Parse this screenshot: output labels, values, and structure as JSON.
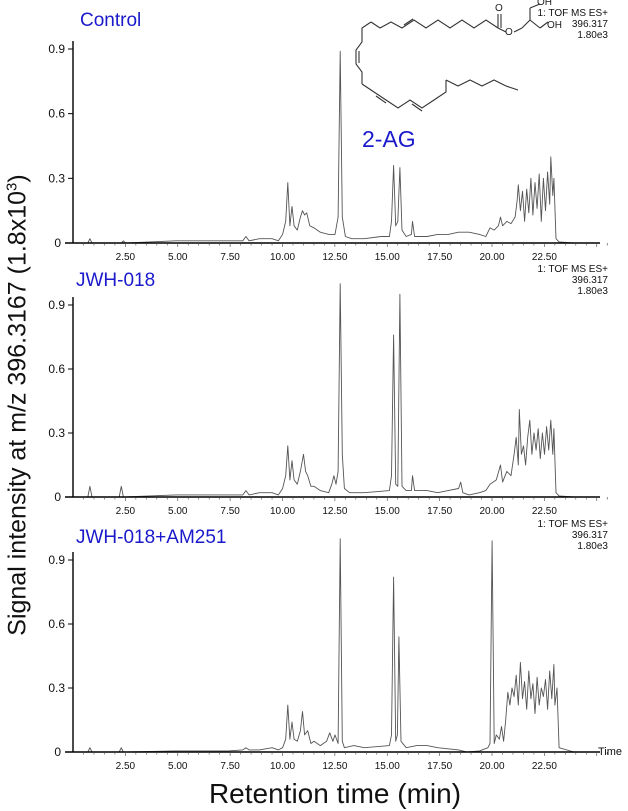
{
  "figure": {
    "ylabel": "Signal intensity at m/z 396.3167 (1.8x10",
    "ylabel_sup": "3",
    "ylabel_close": ")",
    "xlabel": "Retention time (min)",
    "time_axis_label": "Time",
    "compound_label": "2-AG",
    "structure": {
      "oh1": "OH",
      "oh2": "OH",
      "carbonyl_o": "O",
      "ester_o": "O"
    },
    "trace_color": "#555555",
    "title_color": "#1a1acc"
  },
  "panels": [
    {
      "title": "Control",
      "meta_line1": "1: TOF MS ES+",
      "meta_line2": "396.317",
      "meta_line3": "1.80e3"
    },
    {
      "title": "JWH-018",
      "meta_line1": "1: TOF MS ES+",
      "meta_line2": "396.317",
      "meta_line3": "1.80e3"
    },
    {
      "title": "JWH-018+AM251",
      "meta_line1": "1: TOF MS ES+",
      "meta_line2": "396.317",
      "meta_line3": "1.80e3"
    }
  ],
  "chart_data": [
    {
      "type": "line",
      "title": "Control",
      "xlabel": "Retention time (min)",
      "ylabel": "Signal intensity at m/z 396.3167 (1.8x10^3)",
      "xlim": [
        0,
        25.5
      ],
      "ylim": [
        0,
        0.9
      ],
      "xticks": [
        "2.50",
        "5.00",
        "7.50",
        "10.00",
        "12.50",
        "15.00",
        "17.50",
        "20.00",
        "22.50"
      ],
      "yticks": [
        "0",
        "0.3",
        "0.6",
        "0.9"
      ],
      "grid": false,
      "peaks": [
        {
          "x": 0.9,
          "y": 0.02
        },
        {
          "x": 10.35,
          "y": 0.28
        },
        {
          "x": 10.55,
          "y": 0.17
        },
        {
          "x": 11.05,
          "y": 0.15
        },
        {
          "x": 11.2,
          "y": 0.13
        },
        {
          "x": 12.85,
          "y": 0.89
        },
        {
          "x": 15.4,
          "y": 0.36
        },
        {
          "x": 15.7,
          "y": 0.35
        },
        {
          "x": 16.3,
          "y": 0.1
        },
        {
          "x": 20.5,
          "y": 0.1
        },
        {
          "x": 21.35,
          "y": 0.27
        },
        {
          "x": 22.0,
          "y": 0.3
        },
        {
          "x": 22.9,
          "y": 0.4
        }
      ],
      "x": [
        0.2,
        0.8,
        0.9,
        1.0,
        2.4,
        2.5,
        2.6,
        5.0,
        7.5,
        8.2,
        8.35,
        8.5,
        9.0,
        9.6,
        9.9,
        10.1,
        10.25,
        10.35,
        10.45,
        10.55,
        10.65,
        10.8,
        10.95,
        11.05,
        11.15,
        11.25,
        11.4,
        11.6,
        11.9,
        12.3,
        12.6,
        12.75,
        12.85,
        12.95,
        13.1,
        13.4,
        14.0,
        14.8,
        15.2,
        15.3,
        15.4,
        15.5,
        15.6,
        15.7,
        15.8,
        16.0,
        16.25,
        16.3,
        16.4,
        17.0,
        17.5,
        18.0,
        18.5,
        19.0,
        19.5,
        19.8,
        20.0,
        20.2,
        20.4,
        20.5,
        20.6,
        20.8,
        21.0,
        21.2,
        21.3,
        21.35,
        21.45,
        21.55,
        21.65,
        21.75,
        21.85,
        21.95,
        22.05,
        22.15,
        22.25,
        22.35,
        22.45,
        22.55,
        22.65,
        22.75,
        22.85,
        22.9,
        23.0,
        23.05,
        23.15,
        23.3,
        24.0,
        25.0
      ],
      "values": [
        0.0,
        0.0,
        0.02,
        0.0,
        0.0,
        0.01,
        0.0,
        0.01,
        0.01,
        0.01,
        0.03,
        0.01,
        0.02,
        0.02,
        0.01,
        0.04,
        0.1,
        0.28,
        0.08,
        0.17,
        0.08,
        0.06,
        0.12,
        0.15,
        0.13,
        0.14,
        0.08,
        0.07,
        0.05,
        0.04,
        0.04,
        0.12,
        0.89,
        0.12,
        0.03,
        0.02,
        0.02,
        0.03,
        0.03,
        0.1,
        0.36,
        0.08,
        0.1,
        0.35,
        0.06,
        0.03,
        0.04,
        0.1,
        0.03,
        0.03,
        0.04,
        0.04,
        0.05,
        0.05,
        0.04,
        0.03,
        0.07,
        0.06,
        0.08,
        0.12,
        0.08,
        0.1,
        0.09,
        0.12,
        0.2,
        0.27,
        0.15,
        0.24,
        0.1,
        0.25,
        0.14,
        0.3,
        0.13,
        0.28,
        0.16,
        0.32,
        0.1,
        0.3,
        0.15,
        0.33,
        0.18,
        0.4,
        0.22,
        0.3,
        0.02,
        0.005,
        0.0,
        0.0
      ]
    },
    {
      "type": "line",
      "title": "JWH-018",
      "xlabel": "Retention time (min)",
      "ylabel": "Signal intensity at m/z 396.3167 (1.8x10^3)",
      "xlim": [
        0,
        25.5
      ],
      "ylim": [
        0,
        0.9
      ],
      "xticks": [
        "2.50",
        "5.00",
        "7.50",
        "10.00",
        "12.50",
        "15.00",
        "17.50",
        "20.00",
        "22.50"
      ],
      "yticks": [
        "0",
        "0.3",
        "0.6",
        "0.9"
      ],
      "grid": false,
      "peaks": [
        {
          "x": 0.9,
          "y": 0.05
        },
        {
          "x": 2.4,
          "y": 0.05
        },
        {
          "x": 10.35,
          "y": 0.24
        },
        {
          "x": 10.55,
          "y": 0.17
        },
        {
          "x": 11.1,
          "y": 0.2
        },
        {
          "x": 12.55,
          "y": 0.1
        },
        {
          "x": 12.85,
          "y": 1.0
        },
        {
          "x": 15.4,
          "y": 0.76
        },
        {
          "x": 15.7,
          "y": 0.95
        },
        {
          "x": 16.3,
          "y": 0.1
        },
        {
          "x": 18.6,
          "y": 0.07
        },
        {
          "x": 21.4,
          "y": 0.41
        },
        {
          "x": 21.9,
          "y": 0.36
        },
        {
          "x": 22.9,
          "y": 0.36
        }
      ],
      "x": [
        0.2,
        0.8,
        0.9,
        1.0,
        2.3,
        2.4,
        2.5,
        5.0,
        7.5,
        8.2,
        8.35,
        8.5,
        9.0,
        9.6,
        9.9,
        10.1,
        10.25,
        10.35,
        10.45,
        10.55,
        10.65,
        10.8,
        10.95,
        11.1,
        11.2,
        11.3,
        11.45,
        11.6,
        11.9,
        12.3,
        12.45,
        12.55,
        12.65,
        12.75,
        12.85,
        12.95,
        13.05,
        13.3,
        14.0,
        15.2,
        15.3,
        15.4,
        15.5,
        15.6,
        15.7,
        15.8,
        16.0,
        16.25,
        16.3,
        16.4,
        17.0,
        17.5,
        18.0,
        18.5,
        18.6,
        18.7,
        19.0,
        19.5,
        19.8,
        20.0,
        20.3,
        20.5,
        20.6,
        20.8,
        21.0,
        21.15,
        21.25,
        21.35,
        21.4,
        21.5,
        21.6,
        21.7,
        21.8,
        21.9,
        22.0,
        22.1,
        22.2,
        22.3,
        22.4,
        22.5,
        22.6,
        22.7,
        22.8,
        22.9,
        23.0,
        23.05,
        23.15,
        23.3,
        24.0,
        25.0
      ],
      "values": [
        0.0,
        0.0,
        0.05,
        0.0,
        0.0,
        0.05,
        0.0,
        0.01,
        0.01,
        0.01,
        0.03,
        0.01,
        0.02,
        0.02,
        0.01,
        0.04,
        0.1,
        0.24,
        0.08,
        0.17,
        0.08,
        0.06,
        0.12,
        0.2,
        0.12,
        0.1,
        0.05,
        0.05,
        0.03,
        0.02,
        0.06,
        0.1,
        0.06,
        0.12,
        1.0,
        0.2,
        0.04,
        0.02,
        0.02,
        0.03,
        0.1,
        0.76,
        0.06,
        0.05,
        0.95,
        0.05,
        0.03,
        0.03,
        0.1,
        0.03,
        0.03,
        0.02,
        0.03,
        0.04,
        0.07,
        0.02,
        0.01,
        0.02,
        0.03,
        0.06,
        0.08,
        0.15,
        0.07,
        0.12,
        0.1,
        0.2,
        0.28,
        0.15,
        0.41,
        0.2,
        0.24,
        0.15,
        0.28,
        0.36,
        0.2,
        0.3,
        0.22,
        0.32,
        0.18,
        0.3,
        0.2,
        0.33,
        0.22,
        0.36,
        0.2,
        0.32,
        0.02,
        0.005,
        0.0,
        0.0
      ]
    },
    {
      "type": "line",
      "title": "JWH-018+AM251",
      "xlabel": "Retention time (min)",
      "ylabel": "Signal intensity at m/z 396.3167 (1.8x10^3)",
      "xlim": [
        0,
        25.5
      ],
      "ylim": [
        0,
        0.9
      ],
      "xticks": [
        "2.50",
        "5.00",
        "7.50",
        "10.00",
        "12.50",
        "15.00",
        "17.50",
        "20.00",
        "22.50"
      ],
      "yticks": [
        "0",
        "0.3",
        "0.6",
        "0.9"
      ],
      "grid": false,
      "peaks": [
        {
          "x": 0.9,
          "y": 0.02
        },
        {
          "x": 2.4,
          "y": 0.02
        },
        {
          "x": 10.35,
          "y": 0.22
        },
        {
          "x": 10.55,
          "y": 0.14
        },
        {
          "x": 11.05,
          "y": 0.19
        },
        {
          "x": 12.35,
          "y": 0.09
        },
        {
          "x": 12.85,
          "y": 1.0
        },
        {
          "x": 15.4,
          "y": 0.82
        },
        {
          "x": 15.65,
          "y": 0.54
        },
        {
          "x": 20.1,
          "y": 0.99
        },
        {
          "x": 21.4,
          "y": 0.42
        },
        {
          "x": 22.9,
          "y": 0.41
        }
      ],
      "x": [
        0.2,
        0.8,
        0.9,
        1.0,
        2.3,
        2.4,
        2.5,
        5.0,
        7.5,
        8.2,
        8.35,
        8.5,
        9.0,
        9.6,
        9.9,
        10.1,
        10.25,
        10.35,
        10.45,
        10.55,
        10.65,
        10.8,
        10.95,
        11.05,
        11.15,
        11.3,
        11.45,
        11.6,
        11.9,
        12.2,
        12.35,
        12.5,
        12.6,
        12.75,
        12.85,
        12.95,
        13.05,
        13.5,
        14.0,
        15.2,
        15.3,
        15.4,
        15.5,
        15.58,
        15.65,
        15.75,
        16.0,
        16.5,
        17.0,
        17.5,
        18.0,
        18.5,
        18.9,
        19.5,
        19.9,
        20.0,
        20.1,
        20.2,
        20.3,
        20.45,
        20.55,
        20.65,
        20.75,
        20.85,
        20.95,
        21.05,
        21.15,
        21.25,
        21.35,
        21.45,
        21.55,
        21.65,
        21.75,
        21.85,
        21.95,
        22.05,
        22.15,
        22.25,
        22.35,
        22.45,
        22.55,
        22.65,
        22.75,
        22.85,
        22.95,
        23.05,
        23.1,
        23.2,
        23.3,
        24.0,
        25.0
      ],
      "values": [
        0.0,
        0.0,
        0.02,
        0.0,
        0.0,
        0.02,
        0.0,
        0.005,
        0.005,
        0.01,
        0.02,
        0.01,
        0.01,
        0.02,
        0.01,
        0.02,
        0.06,
        0.22,
        0.06,
        0.14,
        0.06,
        0.05,
        0.1,
        0.19,
        0.08,
        0.1,
        0.04,
        0.05,
        0.03,
        0.05,
        0.09,
        0.05,
        0.08,
        0.04,
        1.0,
        0.05,
        0.02,
        0.03,
        0.02,
        0.03,
        0.08,
        0.82,
        0.05,
        0.08,
        0.54,
        0.05,
        0.02,
        0.03,
        0.03,
        0.02,
        0.015,
        0.01,
        0.0,
        0.005,
        0.02,
        0.04,
        0.99,
        0.04,
        0.08,
        0.06,
        0.12,
        0.05,
        0.15,
        0.28,
        0.22,
        0.3,
        0.26,
        0.36,
        0.22,
        0.42,
        0.25,
        0.33,
        0.2,
        0.38,
        0.25,
        0.32,
        0.18,
        0.35,
        0.22,
        0.3,
        0.26,
        0.34,
        0.2,
        0.38,
        0.25,
        0.41,
        0.22,
        0.3,
        0.02,
        0.0,
        0.0
      ]
    }
  ]
}
